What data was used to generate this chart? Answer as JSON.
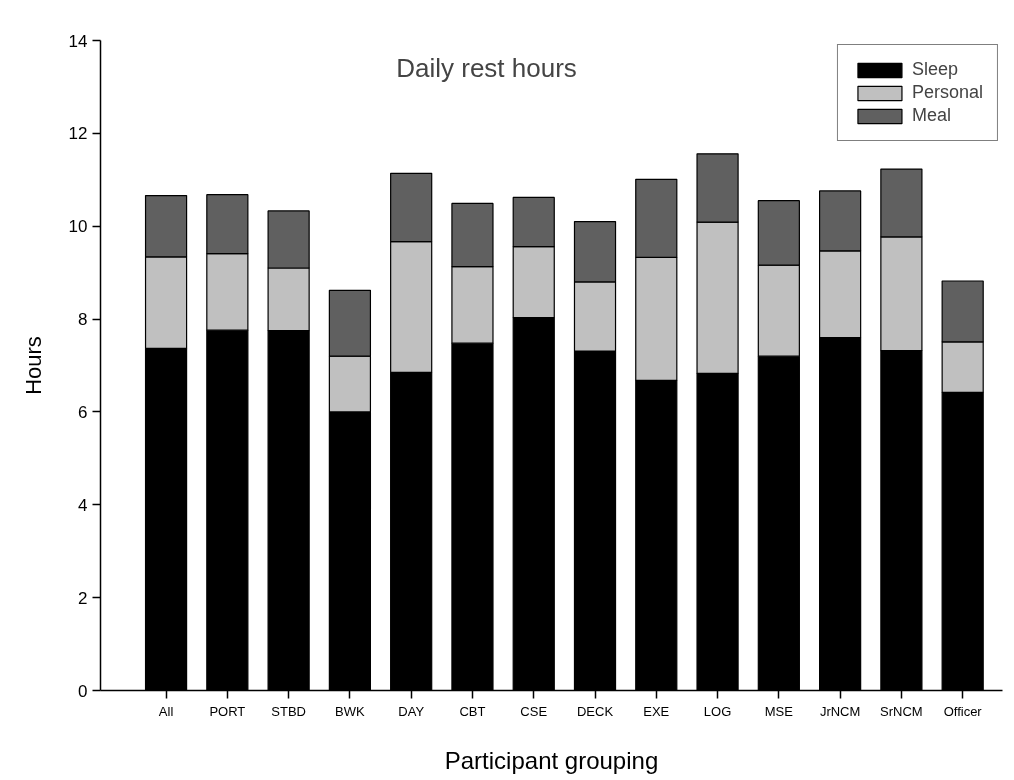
{
  "chart_data": {
    "type": "bar",
    "stacked": true,
    "title": "Daily rest hours",
    "xlabel": "Participant grouping",
    "ylabel": "Hours",
    "categories": [
      "All",
      "PORT",
      "STBD",
      "BWK",
      "DAY",
      "CBT",
      "CSE",
      "DECK",
      "EXE",
      "LOG",
      "MSE",
      "JrNCM",
      "SrNCM",
      "Officer"
    ],
    "series": [
      {
        "name": "Sleep",
        "color": "#000000",
        "values": [
          7.37,
          7.76,
          7.75,
          6.0,
          6.85,
          7.48,
          8.03,
          7.31,
          6.68,
          6.83,
          7.2,
          7.6,
          7.32,
          6.42
        ]
      },
      {
        "name": "Personal",
        "color": "#c0c0c0",
        "values": [
          1.97,
          1.65,
          1.35,
          1.2,
          2.82,
          1.65,
          1.53,
          1.49,
          2.65,
          3.26,
          1.96,
          1.87,
          2.45,
          1.09
        ]
      },
      {
        "name": "Meal",
        "color": "#606060",
        "values": [
          1.32,
          1.27,
          1.23,
          1.42,
          1.47,
          1.36,
          1.06,
          1.3,
          1.68,
          1.47,
          1.39,
          1.29,
          1.46,
          1.31
        ]
      }
    ],
    "ylim": [
      0,
      14
    ],
    "yticks": [
      0,
      2,
      4,
      6,
      8,
      10,
      12,
      14
    ],
    "grid": false,
    "legend": "top right"
  }
}
